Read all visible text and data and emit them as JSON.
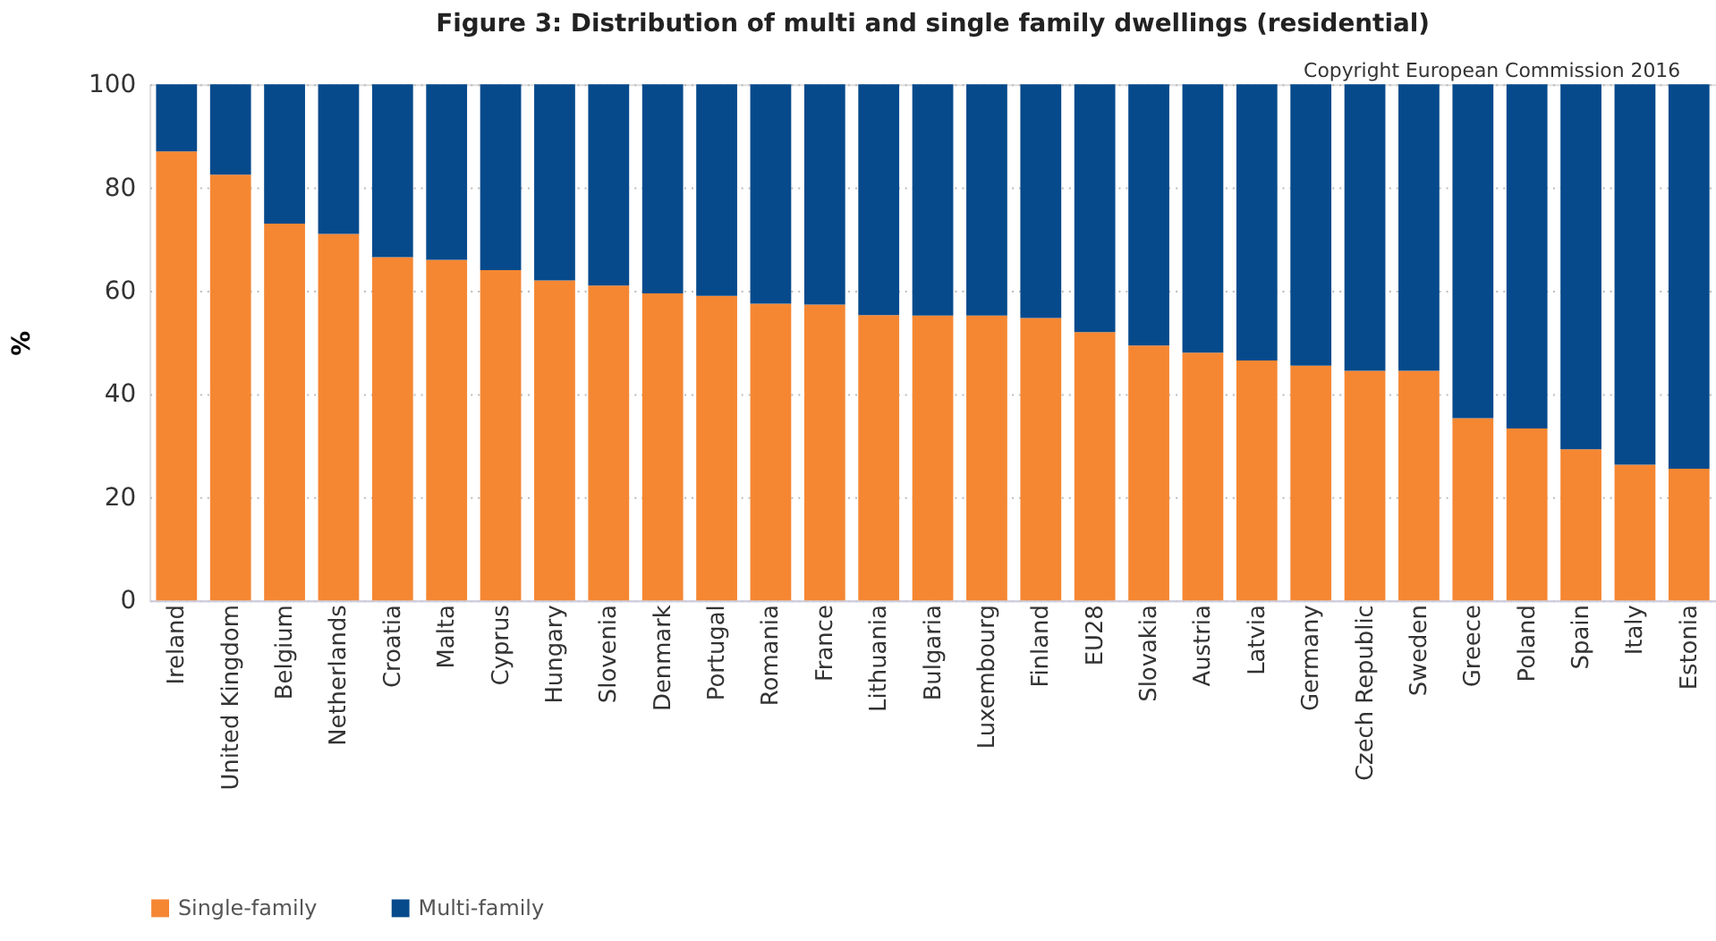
{
  "chart_data": {
    "type": "bar",
    "stacked": true,
    "title": "Figure 3: Distribution of multi and single family dwellings (residential)",
    "annotations": [
      "Copyright European Commission 2016"
    ],
    "ylabel": "%",
    "categories": [
      "Ireland",
      "United Kingdom",
      "Belgium",
      "Netherlands",
      "Croatia",
      "Malta",
      "Cyprus",
      "Hungary",
      "Slovenia",
      "Denmark",
      "Portugal",
      "Romania",
      "France",
      "Lithuania",
      "Bulgaria",
      "Luxembourg",
      "Finland",
      "EU28",
      "Slovakia",
      "Austria",
      "Latvia",
      "Germany",
      "Czech Republic",
      "Sweden",
      "Greece",
      "Poland",
      "Spain",
      "Italy",
      "Estonia"
    ],
    "series": [
      {
        "name": "Single-family",
        "color": "#f58733",
        "values": [
          87,
          82.5,
          73,
          71,
          66.5,
          66,
          64,
          62,
          61,
          59.5,
          59,
          57.5,
          57.3,
          55.3,
          55.2,
          55.2,
          54.7,
          52,
          49.4,
          48,
          46.5,
          45.5,
          44.5,
          44.5,
          35.3,
          33.3,
          29.3,
          26.3,
          25.5
        ]
      },
      {
        "name": "Multi-family",
        "color": "#064a8c",
        "values": [
          13,
          17.5,
          27,
          29,
          33.5,
          34,
          36,
          38,
          39,
          40.5,
          41,
          42.5,
          42.7,
          44.7,
          44.8,
          44.8,
          45.3,
          48,
          50.6,
          52,
          53.5,
          54.5,
          55.5,
          55.5,
          64.7,
          66.7,
          70.7,
          73.7,
          74.5
        ]
      }
    ],
    "ylim": [
      0,
      100
    ],
    "yticks": [
      0,
      20,
      40,
      60,
      80,
      100
    ],
    "grid": "y",
    "legend": "bottom"
  }
}
